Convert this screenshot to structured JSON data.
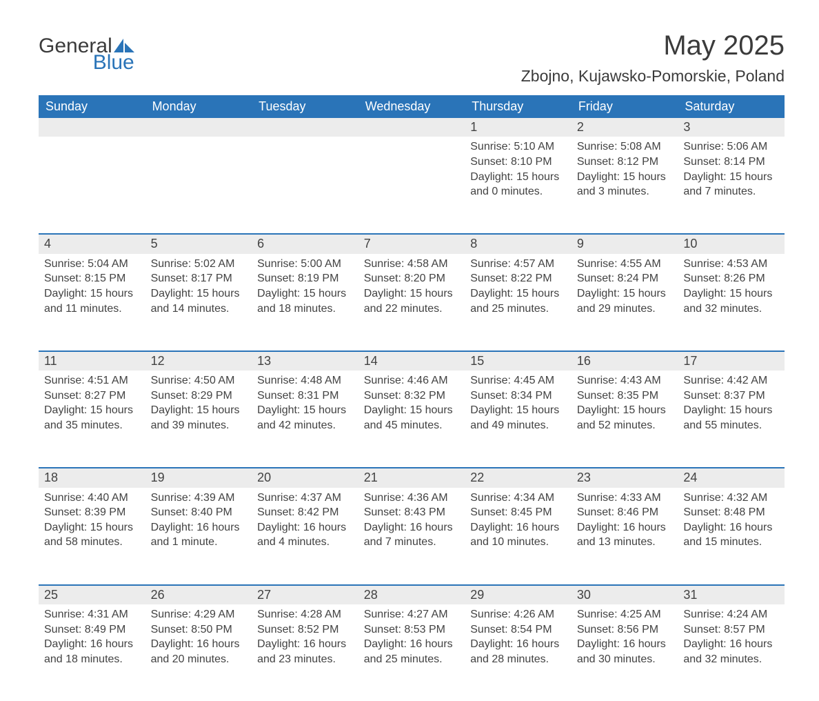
{
  "logo": {
    "word1": "General",
    "word2": "Blue",
    "icon_color": "#2a74b8"
  },
  "title": "May 2025",
  "location": "Zbojno, Kujawsko-Pomorskie, Poland",
  "header_bg": "#2a74b8",
  "header_fg": "#ffffff",
  "daynum_bg": "#ececec",
  "rule_color": "#2a74b8",
  "text_color": "#424242",
  "day_names": [
    "Sunday",
    "Monday",
    "Tuesday",
    "Wednesday",
    "Thursday",
    "Friday",
    "Saturday"
  ],
  "weeks": [
    [
      null,
      null,
      null,
      null,
      {
        "n": "1",
        "sunrise": "5:10 AM",
        "sunset": "8:10 PM",
        "daylight": "15 hours and 0 minutes."
      },
      {
        "n": "2",
        "sunrise": "5:08 AM",
        "sunset": "8:12 PM",
        "daylight": "15 hours and 3 minutes."
      },
      {
        "n": "3",
        "sunrise": "5:06 AM",
        "sunset": "8:14 PM",
        "daylight": "15 hours and 7 minutes."
      }
    ],
    [
      {
        "n": "4",
        "sunrise": "5:04 AM",
        "sunset": "8:15 PM",
        "daylight": "15 hours and 11 minutes."
      },
      {
        "n": "5",
        "sunrise": "5:02 AM",
        "sunset": "8:17 PM",
        "daylight": "15 hours and 14 minutes."
      },
      {
        "n": "6",
        "sunrise": "5:00 AM",
        "sunset": "8:19 PM",
        "daylight": "15 hours and 18 minutes."
      },
      {
        "n": "7",
        "sunrise": "4:58 AM",
        "sunset": "8:20 PM",
        "daylight": "15 hours and 22 minutes."
      },
      {
        "n": "8",
        "sunrise": "4:57 AM",
        "sunset": "8:22 PM",
        "daylight": "15 hours and 25 minutes."
      },
      {
        "n": "9",
        "sunrise": "4:55 AM",
        "sunset": "8:24 PM",
        "daylight": "15 hours and 29 minutes."
      },
      {
        "n": "10",
        "sunrise": "4:53 AM",
        "sunset": "8:26 PM",
        "daylight": "15 hours and 32 minutes."
      }
    ],
    [
      {
        "n": "11",
        "sunrise": "4:51 AM",
        "sunset": "8:27 PM",
        "daylight": "15 hours and 35 minutes."
      },
      {
        "n": "12",
        "sunrise": "4:50 AM",
        "sunset": "8:29 PM",
        "daylight": "15 hours and 39 minutes."
      },
      {
        "n": "13",
        "sunrise": "4:48 AM",
        "sunset": "8:31 PM",
        "daylight": "15 hours and 42 minutes."
      },
      {
        "n": "14",
        "sunrise": "4:46 AM",
        "sunset": "8:32 PM",
        "daylight": "15 hours and 45 minutes."
      },
      {
        "n": "15",
        "sunrise": "4:45 AM",
        "sunset": "8:34 PM",
        "daylight": "15 hours and 49 minutes."
      },
      {
        "n": "16",
        "sunrise": "4:43 AM",
        "sunset": "8:35 PM",
        "daylight": "15 hours and 52 minutes."
      },
      {
        "n": "17",
        "sunrise": "4:42 AM",
        "sunset": "8:37 PM",
        "daylight": "15 hours and 55 minutes."
      }
    ],
    [
      {
        "n": "18",
        "sunrise": "4:40 AM",
        "sunset": "8:39 PM",
        "daylight": "15 hours and 58 minutes."
      },
      {
        "n": "19",
        "sunrise": "4:39 AM",
        "sunset": "8:40 PM",
        "daylight": "16 hours and 1 minute."
      },
      {
        "n": "20",
        "sunrise": "4:37 AM",
        "sunset": "8:42 PM",
        "daylight": "16 hours and 4 minutes."
      },
      {
        "n": "21",
        "sunrise": "4:36 AM",
        "sunset": "8:43 PM",
        "daylight": "16 hours and 7 minutes."
      },
      {
        "n": "22",
        "sunrise": "4:34 AM",
        "sunset": "8:45 PM",
        "daylight": "16 hours and 10 minutes."
      },
      {
        "n": "23",
        "sunrise": "4:33 AM",
        "sunset": "8:46 PM",
        "daylight": "16 hours and 13 minutes."
      },
      {
        "n": "24",
        "sunrise": "4:32 AM",
        "sunset": "8:48 PM",
        "daylight": "16 hours and 15 minutes."
      }
    ],
    [
      {
        "n": "25",
        "sunrise": "4:31 AM",
        "sunset": "8:49 PM",
        "daylight": "16 hours and 18 minutes."
      },
      {
        "n": "26",
        "sunrise": "4:29 AM",
        "sunset": "8:50 PM",
        "daylight": "16 hours and 20 minutes."
      },
      {
        "n": "27",
        "sunrise": "4:28 AM",
        "sunset": "8:52 PM",
        "daylight": "16 hours and 23 minutes."
      },
      {
        "n": "28",
        "sunrise": "4:27 AM",
        "sunset": "8:53 PM",
        "daylight": "16 hours and 25 minutes."
      },
      {
        "n": "29",
        "sunrise": "4:26 AM",
        "sunset": "8:54 PM",
        "daylight": "16 hours and 28 minutes."
      },
      {
        "n": "30",
        "sunrise": "4:25 AM",
        "sunset": "8:56 PM",
        "daylight": "16 hours and 30 minutes."
      },
      {
        "n": "31",
        "sunrise": "4:24 AM",
        "sunset": "8:57 PM",
        "daylight": "16 hours and 32 minutes."
      }
    ]
  ],
  "labels": {
    "sunrise": "Sunrise: ",
    "sunset": "Sunset: ",
    "daylight": "Daylight: "
  }
}
